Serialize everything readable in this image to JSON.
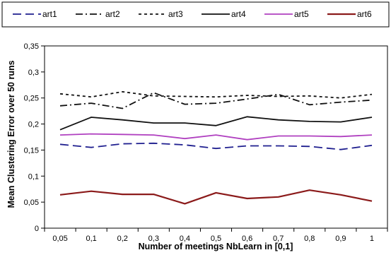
{
  "chart_data": {
    "type": "line",
    "title": "",
    "xlabel": "Number of meetings NbLearn in [0,1]",
    "ylabel": "Mean Clustering Error over 50 runs",
    "x": [
      "0,05",
      "0,1",
      "0,2",
      "0,3",
      "0,4",
      "0,5",
      "0,6",
      "0,7",
      "0,8",
      "0,9",
      "1"
    ],
    "y_ticks": [
      "0",
      "0,05",
      "0,1",
      "0,15",
      "0,2",
      "0,25",
      "0,3",
      "0,35"
    ],
    "ylim": [
      0,
      0.35
    ],
    "grid": false,
    "legend_position": "top",
    "series": [
      {
        "name": "art1",
        "color": "#1f1f8f",
        "style": "long-dash",
        "values": [
          0.161,
          0.155,
          0.162,
          0.163,
          0.16,
          0.153,
          0.158,
          0.158,
          0.157,
          0.151,
          0.159
        ]
      },
      {
        "name": "art2",
        "color": "#111111",
        "style": "dash-dot",
        "values": [
          0.235,
          0.24,
          0.23,
          0.26,
          0.238,
          0.24,
          0.248,
          0.257,
          0.237,
          0.242,
          0.246
        ]
      },
      {
        "name": "art3",
        "color": "#111111",
        "style": "short-dash",
        "values": [
          0.258,
          0.252,
          0.262,
          0.254,
          0.253,
          0.252,
          0.255,
          0.253,
          0.254,
          0.25,
          0.257
        ]
      },
      {
        "name": "art4",
        "color": "#111111",
        "style": "solid",
        "values": [
          0.189,
          0.213,
          0.208,
          0.202,
          0.202,
          0.197,
          0.214,
          0.208,
          0.205,
          0.204,
          0.213
        ]
      },
      {
        "name": "art5",
        "color": "#b040c0",
        "style": "solid",
        "values": [
          0.179,
          0.181,
          0.18,
          0.179,
          0.172,
          0.179,
          0.17,
          0.177,
          0.177,
          0.176,
          0.179
        ]
      },
      {
        "name": "art6",
        "color": "#8b1a1a",
        "style": "solid-thick",
        "values": [
          0.064,
          0.071,
          0.065,
          0.065,
          0.047,
          0.068,
          0.057,
          0.06,
          0.073,
          0.064,
          0.052
        ]
      }
    ]
  }
}
